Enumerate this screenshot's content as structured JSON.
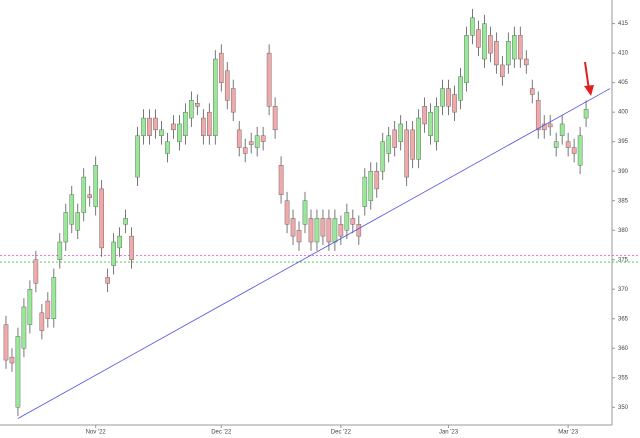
{
  "chart_data": {
    "type": "candlestick",
    "up_color": "#98e898",
    "down_color": "#f0a8a8",
    "edge_color": "#555555",
    "open": [
      364,
      358.5,
      350,
      360,
      364,
      375,
      366,
      368,
      365,
      375,
      378,
      381,
      380,
      383,
      386,
      384,
      387,
      372,
      374,
      377,
      381,
      379,
      389,
      396,
      399,
      399,
      396,
      393,
      398,
      395,
      396,
      399,
      401.5,
      399,
      400,
      396,
      410,
      407,
      404,
      397,
      394,
      395,
      394,
      396,
      410,
      401,
      391,
      385,
      382,
      380,
      381,
      382,
      378,
      382,
      382,
      378,
      381,
      380,
      382,
      381,
      384,
      385,
      390,
      390,
      393,
      397,
      395,
      397,
      397,
      392,
      401,
      396,
      395,
      401,
      404,
      403,
      402,
      405,
      413,
      414,
      409,
      413,
      412,
      408,
      408,
      409,
      413,
      409,
      404,
      402,
      398,
      398,
      394,
      396,
      395,
      394,
      391,
      399
    ],
    "high": [
      365.5,
      360,
      363.5,
      368.5,
      371.5,
      376.5,
      367.5,
      369.5,
      373.5,
      379.5,
      384.5,
      387.5,
      384.5,
      390.5,
      387.5,
      392.5,
      388.5,
      373.5,
      379.5,
      380.5,
      383.5,
      380.5,
      397.5,
      400.5,
      400.5,
      400.5,
      398.5,
      396.5,
      399.5,
      399.5,
      401.5,
      403.5,
      403,
      400.5,
      401.5,
      410.5,
      411.5,
      408.5,
      405.5,
      398.5,
      395.5,
      396.5,
      397.5,
      397.5,
      411.5,
      402.5,
      392.5,
      386.5,
      383.5,
      381.5,
      386.5,
      383.5,
      383.5,
      383.5,
      383.5,
      383.5,
      382.5,
      384.5,
      383.5,
      382.5,
      390.5,
      391.5,
      391.5,
      396.5,
      397.5,
      398.5,
      399.5,
      398.5,
      398.5,
      400.5,
      402.5,
      401.5,
      402.5,
      405.5,
      405.5,
      404.5,
      407.5,
      414.5,
      417.5,
      415.5,
      416.5,
      414.5,
      413.5,
      409.5,
      413.5,
      414.5,
      414.5,
      410.5,
      405.5,
      403.5,
      399.5,
      399.5,
      396.5,
      399.5,
      396.5,
      395.5,
      397.5,
      402
    ],
    "low": [
      356.5,
      356,
      348.5,
      358.5,
      362.5,
      369.5,
      361.5,
      363.5,
      363.5,
      373.5,
      376.5,
      379.5,
      378.5,
      381.5,
      384,
      382.5,
      375.5,
      369.5,
      372.5,
      375.5,
      379.5,
      373.5,
      387.5,
      394.5,
      394.5,
      395.5,
      394.5,
      391.5,
      395.5,
      393.5,
      394.5,
      397.5,
      399.5,
      394.5,
      394.5,
      394.5,
      403.5,
      400.5,
      398.5,
      392.5,
      391.5,
      393,
      392.5,
      393.5,
      399.5,
      395.5,
      384.5,
      379.5,
      377.5,
      376.5,
      379.5,
      376.5,
      376.5,
      377.5,
      376.5,
      376.5,
      377.5,
      378.5,
      379.5,
      377.5,
      382.5,
      383.5,
      385.5,
      388.5,
      391.5,
      392.5,
      393.5,
      387.5,
      390.5,
      390.5,
      396.5,
      394.5,
      393.5,
      399.5,
      399.5,
      398.5,
      400.5,
      403.5,
      411.5,
      409.5,
      407.5,
      408.5,
      406.5,
      404.5,
      406.5,
      407.5,
      407.5,
      406.5,
      401.5,
      395.5,
      395.5,
      396,
      392.5,
      394.5,
      392.5,
      391.5,
      389.5,
      397.5
    ],
    "close": [
      358,
      357.5,
      362,
      367,
      370,
      371,
      363,
      365,
      372,
      378,
      383,
      386,
      383,
      389,
      385.5,
      391,
      377,
      371,
      378,
      379,
      382,
      375,
      396,
      399,
      396,
      397,
      397,
      395,
      397,
      398,
      400,
      402,
      401,
      396,
      396,
      409,
      405,
      402,
      400,
      394,
      393,
      394.5,
      396,
      395,
      401,
      397,
      386,
      381,
      379,
      378,
      385,
      378,
      382,
      379,
      378,
      382,
      379,
      383,
      381,
      379,
      389,
      390,
      387,
      395,
      396,
      394,
      398,
      389,
      392,
      399,
      398,
      400,
      401,
      404,
      401,
      400,
      406,
      413,
      416,
      411,
      415,
      410,
      408,
      406,
      412,
      413,
      409,
      408,
      403,
      397,
      397,
      397.5,
      395,
      398,
      394,
      393,
      396,
      400.5
    ],
    "xlim": [
      -1,
      101
    ],
    "xticks": [
      {
        "value": 15,
        "label": "Nov '22"
      },
      {
        "value": 36,
        "label": "Dec '22"
      },
      {
        "value": 56,
        "label": "Dec '22"
      },
      {
        "value": 74,
        "label": "Jan '23"
      },
      {
        "value": 94,
        "label": "Mar '23"
      }
    ],
    "ylim": [
      347,
      419
    ],
    "yticks": [
      350,
      355,
      360,
      365,
      370,
      375,
      380,
      385,
      390,
      395,
      400,
      405,
      410,
      415
    ],
    "hlines": [
      {
        "value": 375.7,
        "color": "#d050d0"
      },
      {
        "value": 374.6,
        "color": "#40c040"
      }
    ],
    "trendline": {
      "x": [
        2,
        101
      ],
      "y": [
        348.1,
        404
      ],
      "color": "#5050e0"
    }
  }
}
